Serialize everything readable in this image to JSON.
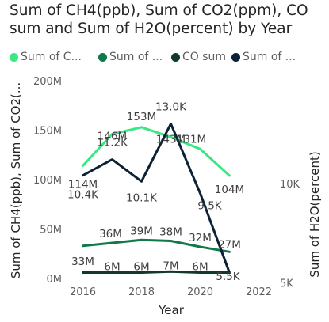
{
  "chart_data": {
    "type": "line",
    "title": "Sum of CH4(ppb), Sum of CO2(ppm), CO sum and Sum of H2O(percent) by Year",
    "xlabel": "Year",
    "ylabel": "Sum of CH4(ppb), Sum of CO2(...",
    "y2label": "Sum of H2O(percent)",
    "xlim": [
      2015.5,
      2022.5
    ],
    "ylim": [
      0,
      200000000
    ],
    "y2lim": [
      3700,
      16600
    ],
    "x_ticks": [
      "2016",
      "2018",
      "2020",
      "2022"
    ],
    "y_ticks": [
      "0M",
      "50M",
      "100M",
      "150M",
      "200M"
    ],
    "y2_ticks": [
      "5K",
      "10K"
    ],
    "grid": false,
    "legend_position": "top",
    "series": [
      {
        "name": "Sum of C...",
        "axis": "left",
        "color": "#38e882",
        "x": [
          2016,
          2017,
          2018,
          2019,
          2020,
          2021
        ],
        "values": [
          114000000,
          146000000,
          153000000,
          143000000,
          131000000,
          104000000
        ],
        "labels": [
          "114M",
          "146M",
          "153M",
          "143M",
          "131M",
          "104M"
        ]
      },
      {
        "name": "Sum of ...",
        "axis": "left",
        "color": "#11784a",
        "x": [
          2016,
          2017,
          2018,
          2019,
          2020,
          2021
        ],
        "values": [
          33000000,
          36000000,
          39000000,
          38000000,
          32000000,
          27000000
        ],
        "labels": [
          "33M",
          "36M",
          "39M",
          "38M",
          "32M",
          "27M"
        ]
      },
      {
        "name": "CO sum",
        "axis": "left",
        "color": "#0f3a2c",
        "x": [
          2016,
          2017,
          2018,
          2019,
          2020,
          2021
        ],
        "values": [
          6000000,
          6000000,
          6000000,
          7000000,
          6000000,
          6000000
        ],
        "labels": [
          "",
          "6M",
          "6M",
          "7M",
          "6M",
          ""
        ]
      },
      {
        "name": "Sum of ...",
        "axis": "right",
        "color": "#0b2236",
        "x": [
          2016,
          2017,
          2018,
          2019,
          2020,
          2021
        ],
        "values": [
          10400,
          11200,
          10100,
          13000,
          9500,
          5500
        ],
        "labels": [
          "10.4K",
          "11.2K",
          "10.1K",
          "13.0K",
          "9.5K",
          "5.5K"
        ]
      }
    ]
  }
}
